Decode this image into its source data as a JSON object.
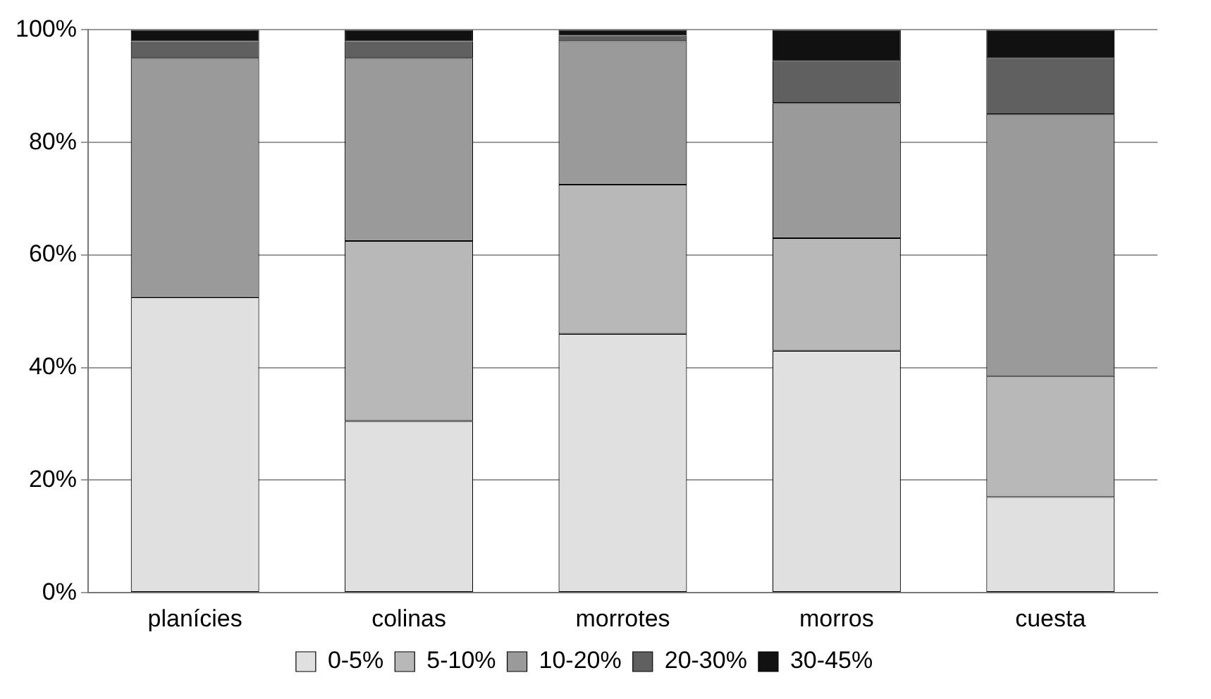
{
  "chart_data": {
    "type": "bar",
    "stacked": true,
    "categories": [
      "planícies",
      "colinas",
      "morrotes",
      "morros",
      "cuesta"
    ],
    "series": [
      {
        "name": "0-5%",
        "color": "#e0e0e0",
        "values": [
          52.5,
          30.5,
          46,
          43,
          17
        ]
      },
      {
        "name": "5-10%",
        "color": "#b8b8b8",
        "values": [
          0,
          32,
          26.5,
          20,
          21.5
        ]
      },
      {
        "name": "10-20%",
        "color": "#9a9a9a",
        "values": [
          42.5,
          32.5,
          25.5,
          24,
          46.5
        ]
      },
      {
        "name": "20-30%",
        "color": "#606060",
        "values": [
          3,
          3,
          1,
          7.5,
          10
        ]
      },
      {
        "name": "30-45%",
        "color": "#111111",
        "values": [
          2,
          2,
          1,
          5.5,
          5
        ]
      }
    ],
    "ylim": [
      0,
      100
    ],
    "yticks": [
      {
        "value": 0,
        "label": "0%"
      },
      {
        "value": 20,
        "label": "20%"
      },
      {
        "value": 40,
        "label": "40%"
      },
      {
        "value": 60,
        "label": "60%"
      },
      {
        "value": 80,
        "label": "80%"
      },
      {
        "value": 100,
        "label": "100%"
      }
    ],
    "grid": "y",
    "legend": "bottom"
  }
}
